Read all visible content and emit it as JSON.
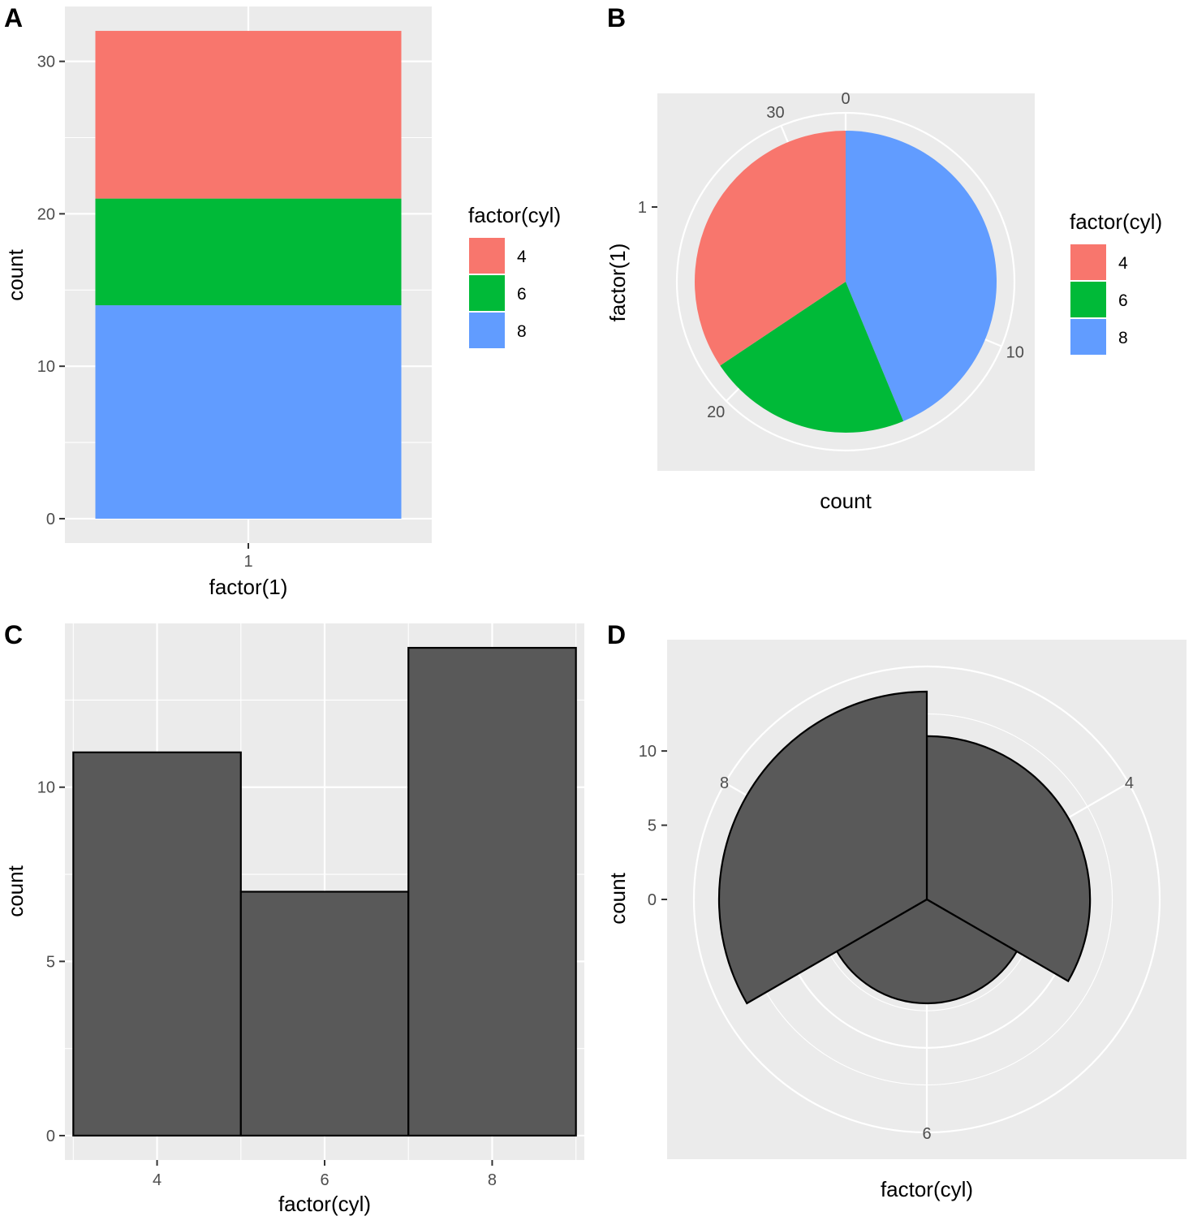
{
  "chart_data": [
    {
      "tag": "A",
      "type": "bar",
      "stacked": true,
      "categories": [
        "1"
      ],
      "series": [
        {
          "name": "4",
          "values": [
            11
          ]
        },
        {
          "name": "6",
          "values": [
            7
          ]
        },
        {
          "name": "8",
          "values": [
            14
          ]
        }
      ],
      "xlabel": "factor(1)",
      "ylabel": "count",
      "yticks": [
        0,
        10,
        20,
        30
      ],
      "ylim": [
        -1.6,
        33.6
      ],
      "legend": {
        "title": "factor(cyl)",
        "position": "right",
        "items": [
          "4",
          "6",
          "8"
        ]
      }
    },
    {
      "tag": "B",
      "type": "pie",
      "coord": "polar (theta = count)",
      "slices": [
        {
          "name": "4",
          "value": 11
        },
        {
          "name": "6",
          "value": 7
        },
        {
          "name": "8",
          "value": 14
        }
      ],
      "theta_ticks": [
        "0",
        "10",
        "20",
        "30"
      ],
      "theta_tick_values": [
        0,
        10,
        20,
        30
      ],
      "theta_total": 32,
      "xlabel": "count",
      "ylabel": "factor(1)",
      "yticks": [
        "1"
      ],
      "legend": {
        "title": "factor(cyl)",
        "position": "right",
        "items": [
          "4",
          "6",
          "8"
        ]
      }
    },
    {
      "tag": "C",
      "type": "bar",
      "categories": [
        "4",
        "6",
        "8"
      ],
      "x_values": [
        4,
        6,
        8
      ],
      "bar_width": 2,
      "values": [
        11,
        7,
        14
      ],
      "xlabel": "factor(cyl)",
      "ylabel": "count",
      "xticks": [
        "4",
        "6",
        "8"
      ],
      "yticks": [
        0,
        5,
        10
      ],
      "xlim": [
        2.9,
        9.1
      ],
      "ylim": [
        -0.7,
        14.7
      ]
    },
    {
      "tag": "D",
      "type": "bar",
      "coord": "polar (theta = factor(cyl))",
      "categories": [
        "4",
        "6",
        "8"
      ],
      "values": [
        11,
        7,
        14
      ],
      "xlabel": "factor(cyl)",
      "ylabel": "count",
      "theta_ticks": [
        "4",
        "6",
        "8"
      ],
      "yticks": [
        0,
        5,
        10
      ],
      "rlim": [
        0,
        14
      ]
    }
  ],
  "colors": {
    "4": "#F8766D",
    "6": "#00BA38",
    "8": "#619CFF",
    "dark_bar": "#595959"
  }
}
